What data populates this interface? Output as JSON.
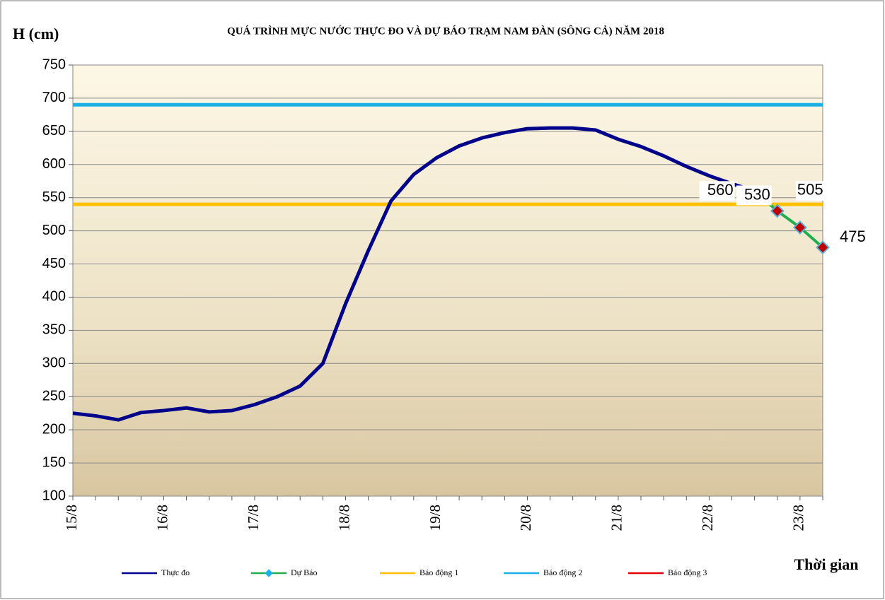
{
  "chart_data": {
    "type": "line",
    "title": "QUÁ TRÌNH MỰC NƯỚC THỰC ĐO VÀ DỰ BÁO TRẠM  NAM  ĐÀN (SÔNG CẢ) NĂM 2018",
    "y_label": "H (cm)",
    "x_label": "Thời gian",
    "categories": [
      "15/8",
      null,
      null,
      null,
      "16/8",
      null,
      null,
      null,
      "17/8",
      null,
      null,
      null,
      "18/8",
      null,
      null,
      null,
      "19/8",
      null,
      null,
      null,
      "20/8",
      null,
      null,
      null,
      "21/8",
      null,
      null,
      null,
      "22/8",
      null,
      null,
      null,
      "23/8",
      null
    ],
    "series": [
      {
        "name": "Thực đo",
        "color": "#00008b",
        "values": [
          225,
          221,
          215,
          226,
          229,
          233,
          227,
          229,
          238,
          250,
          266,
          300,
          390,
          470,
          545,
          585,
          610,
          628,
          640,
          648,
          654,
          655,
          655,
          652,
          638,
          627,
          613,
          597,
          583,
          571,
          560,
          null,
          null,
          null
        ]
      },
      {
        "name": "Dự Báo",
        "color": "#1fae4b",
        "marker_color": "#c00000",
        "values": [
          null,
          null,
          null,
          null,
          null,
          null,
          null,
          null,
          null,
          null,
          null,
          null,
          null,
          null,
          null,
          null,
          null,
          null,
          null,
          null,
          null,
          null,
          null,
          null,
          null,
          null,
          null,
          null,
          null,
          null,
          560,
          530,
          505,
          475
        ]
      }
    ],
    "hlines": [
      {
        "name": "Báo động 1",
        "color": "#ffc000",
        "value": 540
      },
      {
        "name": "Báo động 2",
        "color": "#1ab0e8",
        "value": 690
      },
      {
        "name": "Báo động 3",
        "color": "#e00000"
      }
    ],
    "ylim": [
      100,
      750
    ],
    "yticks": [
      100,
      150,
      200,
      250,
      300,
      350,
      400,
      450,
      500,
      550,
      600,
      650,
      700,
      750
    ],
    "grid": true,
    "legend": "bottom"
  }
}
